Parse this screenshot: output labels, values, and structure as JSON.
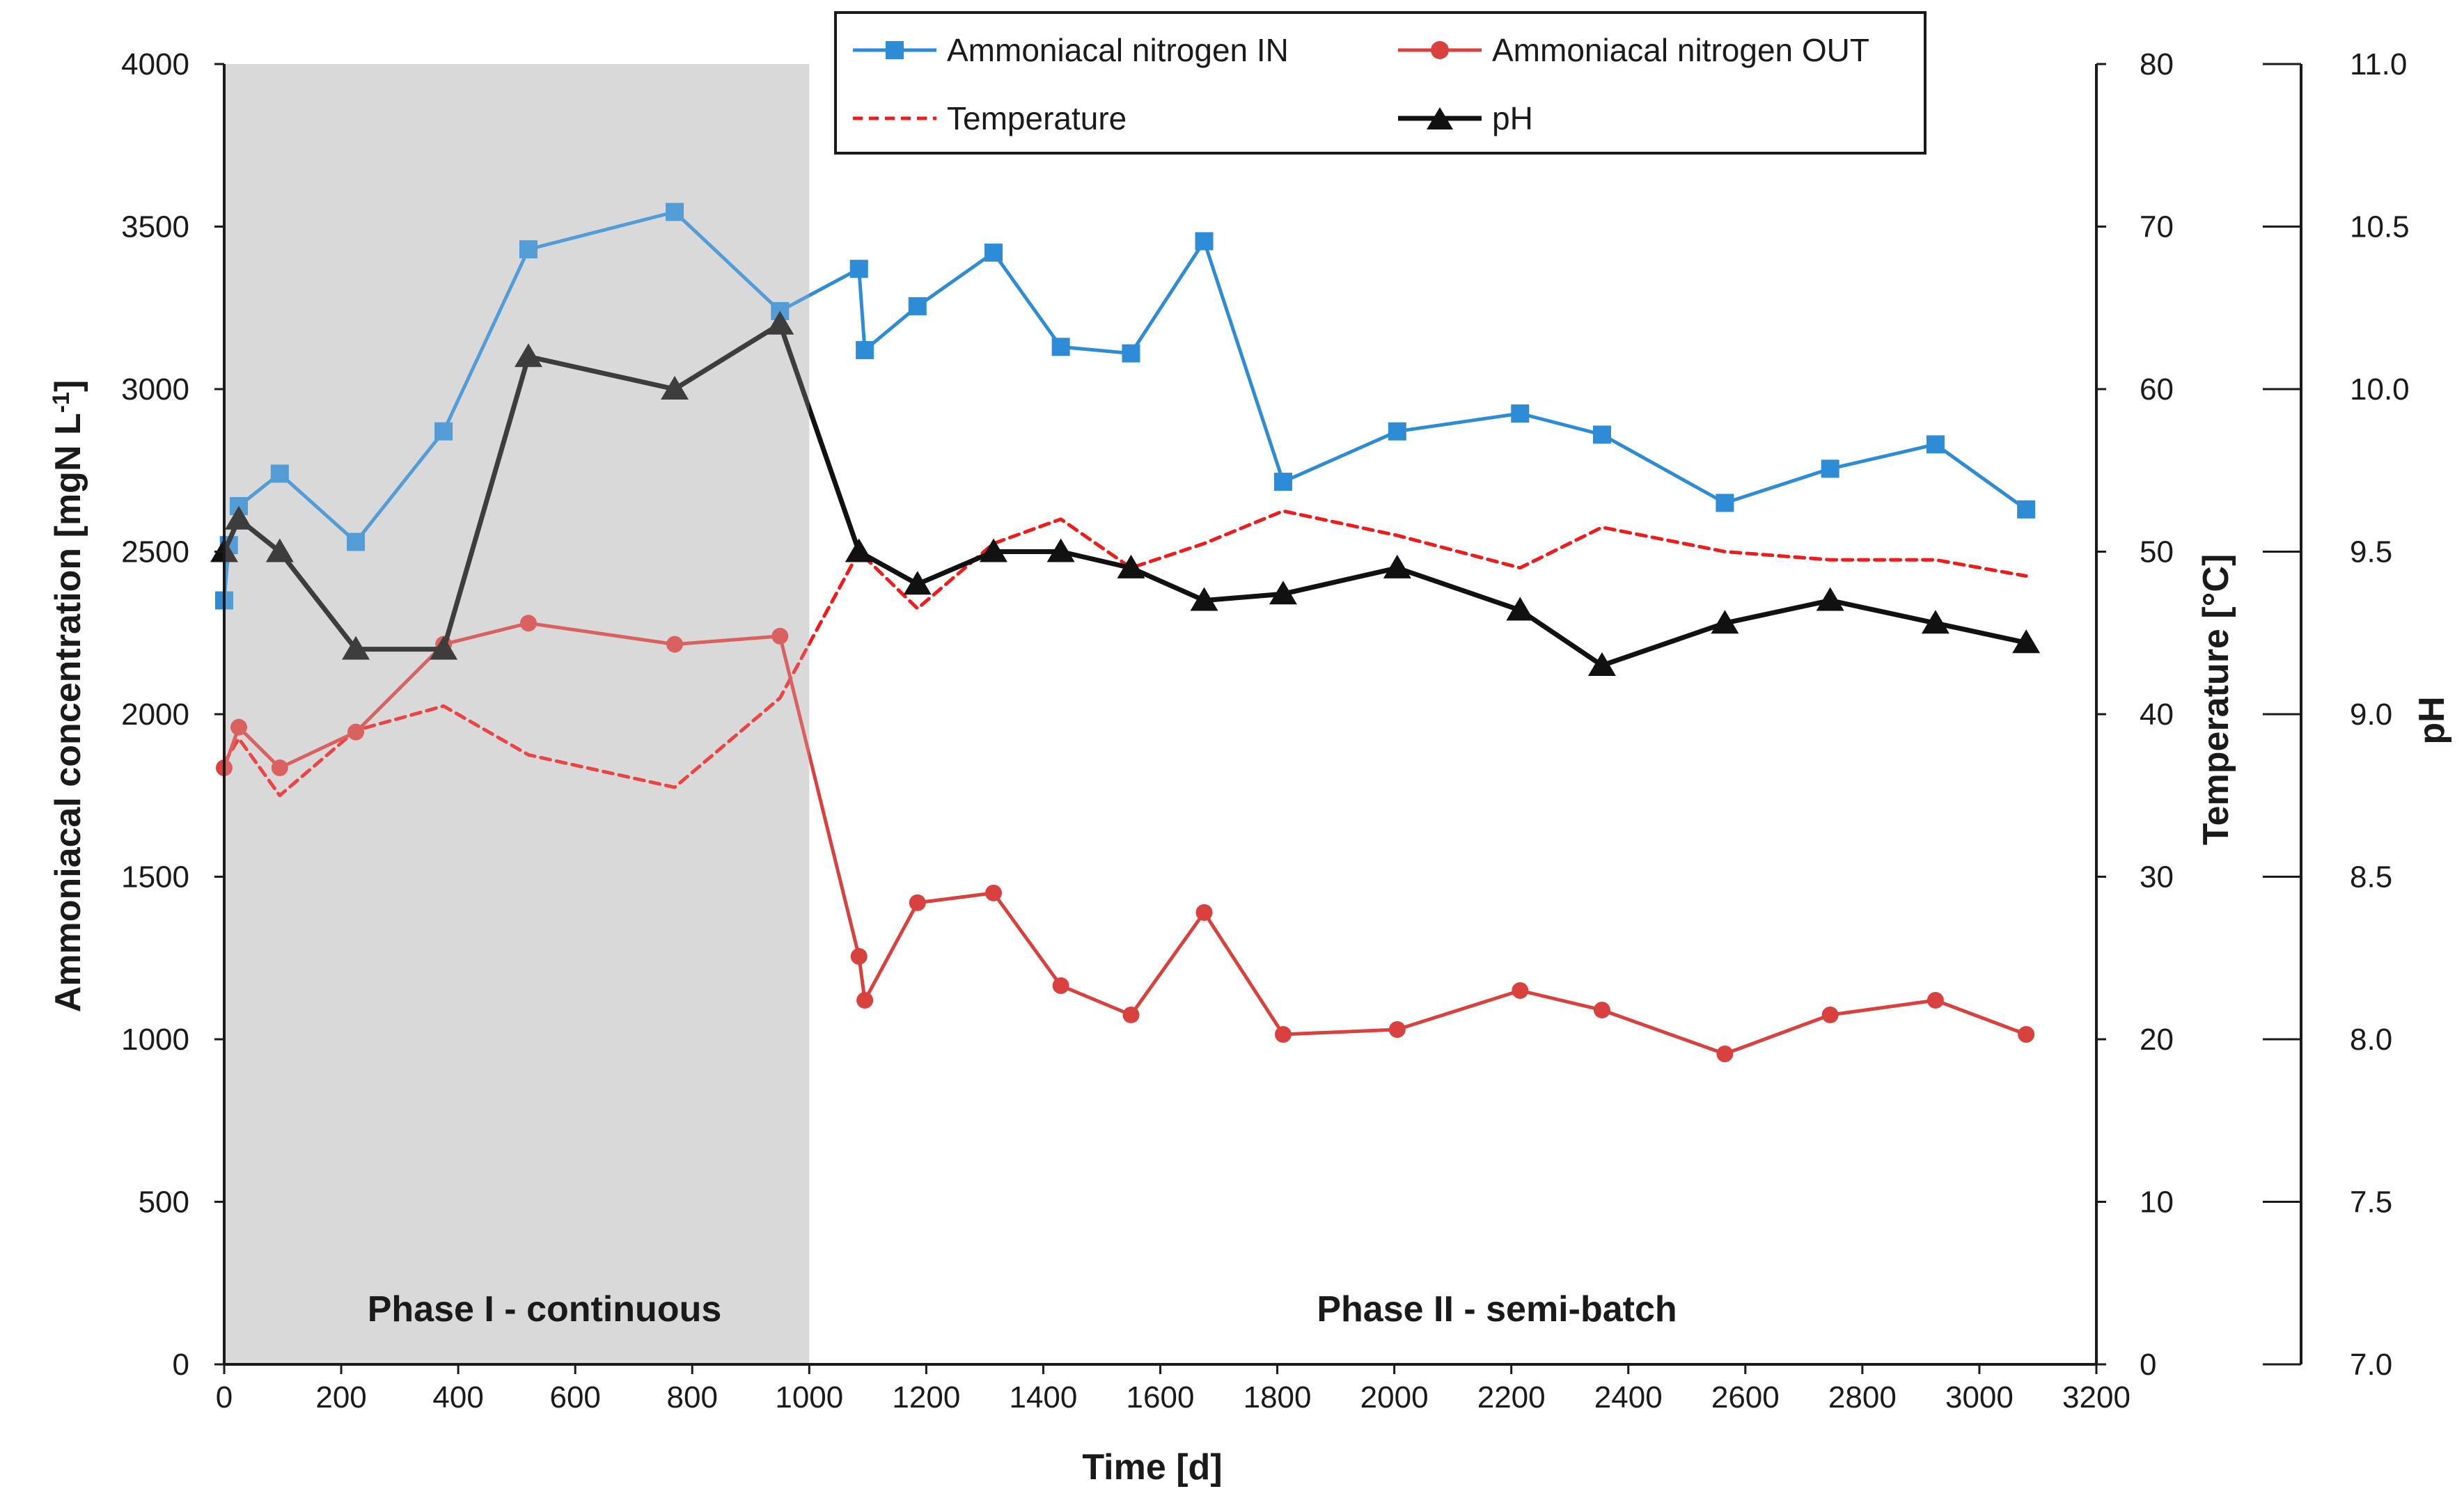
{
  "chart_data": {
    "type": "line",
    "xlabel": "Time [d]",
    "ylabel": "Ammoniacal concentration [mgN L",
    "ylabel_sup": "-1",
    "ylabel_close": "]",
    "y2label": "Temperature [°C]",
    "y3label": "pH",
    "xlim": [
      0,
      3200
    ],
    "ylim": [
      0,
      4000
    ],
    "y2lim": [
      0,
      80
    ],
    "y3lim": [
      7.0,
      11.0
    ],
    "xticks": [
      0,
      200,
      400,
      600,
      800,
      1000,
      1200,
      1400,
      1600,
      1800,
      2000,
      2200,
      2400,
      2600,
      2800,
      3000,
      3200
    ],
    "yticks": [
      0,
      500,
      1000,
      1500,
      2000,
      2500,
      3000,
      3500,
      4000
    ],
    "y2ticks": [
      0,
      10,
      20,
      30,
      40,
      50,
      60,
      70,
      80
    ],
    "y3ticks": [
      "7.0",
      "7.5",
      "8.0",
      "8.5",
      "9.0",
      "9.5",
      "10.0",
      "10.5",
      "11.0"
    ],
    "phases": [
      {
        "label": "Phase I - continuous",
        "start": 0,
        "end": 1000,
        "shaded": true
      },
      {
        "label": "Phase II - semi-batch",
        "start": 1000,
        "end": 3200,
        "shaded": false
      }
    ],
    "series": [
      {
        "name": "Ammoniacal nitrogen IN",
        "axis": "left",
        "color": "#2e8bd5",
        "marker": "square",
        "points": [
          [
            0,
            2350
          ],
          [
            8,
            2520
          ],
          [
            25,
            2640
          ],
          [
            95,
            2740
          ],
          [
            225,
            2530
          ],
          [
            375,
            2870
          ],
          [
            520,
            3430
          ],
          [
            770,
            3545
          ],
          [
            950,
            3240
          ],
          [
            1085,
            3370
          ],
          [
            1095,
            3120
          ],
          [
            1185,
            3255
          ],
          [
            1315,
            3420
          ],
          [
            1430,
            3130
          ],
          [
            1550,
            3110
          ],
          [
            1675,
            3455
          ],
          [
            1810,
            2715
          ],
          [
            2005,
            2870
          ],
          [
            2215,
            2925
          ],
          [
            2355,
            2860
          ],
          [
            2565,
            2650
          ],
          [
            2745,
            2755
          ],
          [
            2925,
            2830
          ],
          [
            3080,
            2630
          ]
        ]
      },
      {
        "name": "Ammoniacal nitrogen OUT",
        "axis": "left",
        "color": "#d9413f",
        "marker": "circle",
        "points": [
          [
            0,
            1835
          ],
          [
            25,
            1960
          ],
          [
            95,
            1835
          ],
          [
            225,
            1945
          ],
          [
            375,
            2215
          ],
          [
            520,
            2280
          ],
          [
            770,
            2215
          ],
          [
            950,
            2240
          ],
          [
            1085,
            1255
          ],
          [
            1095,
            1120
          ],
          [
            1185,
            1420
          ],
          [
            1315,
            1450
          ],
          [
            1430,
            1165
          ],
          [
            1550,
            1075
          ],
          [
            1675,
            1390
          ],
          [
            1810,
            1015
          ],
          [
            2005,
            1030
          ],
          [
            2215,
            1150
          ],
          [
            2355,
            1090
          ],
          [
            2565,
            955
          ],
          [
            2745,
            1075
          ],
          [
            2925,
            1120
          ],
          [
            3080,
            1015
          ]
        ]
      },
      {
        "name": "Temperature",
        "axis": "right",
        "color": "#ee1c1c",
        "marker": "none",
        "dashed": true,
        "points": [
          [
            0,
            37
          ],
          [
            25,
            38.5
          ],
          [
            95,
            35
          ],
          [
            225,
            39
          ],
          [
            375,
            40.5
          ],
          [
            520,
            37.5
          ],
          [
            770,
            35.5
          ],
          [
            950,
            41
          ],
          [
            1085,
            50
          ],
          [
            1185,
            46.5
          ],
          [
            1315,
            50.5
          ],
          [
            1430,
            52
          ],
          [
            1550,
            49
          ],
          [
            1675,
            50.5
          ],
          [
            1810,
            52.5
          ],
          [
            2005,
            51
          ],
          [
            2215,
            49
          ],
          [
            2355,
            51.5
          ],
          [
            2565,
            50
          ],
          [
            2745,
            49.5
          ],
          [
            2925,
            49.5
          ],
          [
            3080,
            48.5
          ]
        ]
      },
      {
        "name": "pH",
        "axis": "right2",
        "color": "#111111",
        "marker": "triangle",
        "points": [
          [
            0,
            9.5
          ],
          [
            25,
            9.6
          ],
          [
            95,
            9.5
          ],
          [
            225,
            9.2
          ],
          [
            375,
            9.2
          ],
          [
            520,
            10.1
          ],
          [
            770,
            10.0
          ],
          [
            950,
            10.2
          ],
          [
            1085,
            9.5
          ],
          [
            1185,
            9.4
          ],
          [
            1315,
            9.5
          ],
          [
            1430,
            9.5
          ],
          [
            1550,
            9.45
          ],
          [
            1675,
            9.35
          ],
          [
            1810,
            9.37
          ],
          [
            2005,
            9.45
          ],
          [
            2215,
            9.32
          ],
          [
            2355,
            9.15
          ],
          [
            2565,
            9.28
          ],
          [
            2745,
            9.35
          ],
          [
            2925,
            9.28
          ],
          [
            3080,
            9.22
          ]
        ]
      }
    ]
  }
}
